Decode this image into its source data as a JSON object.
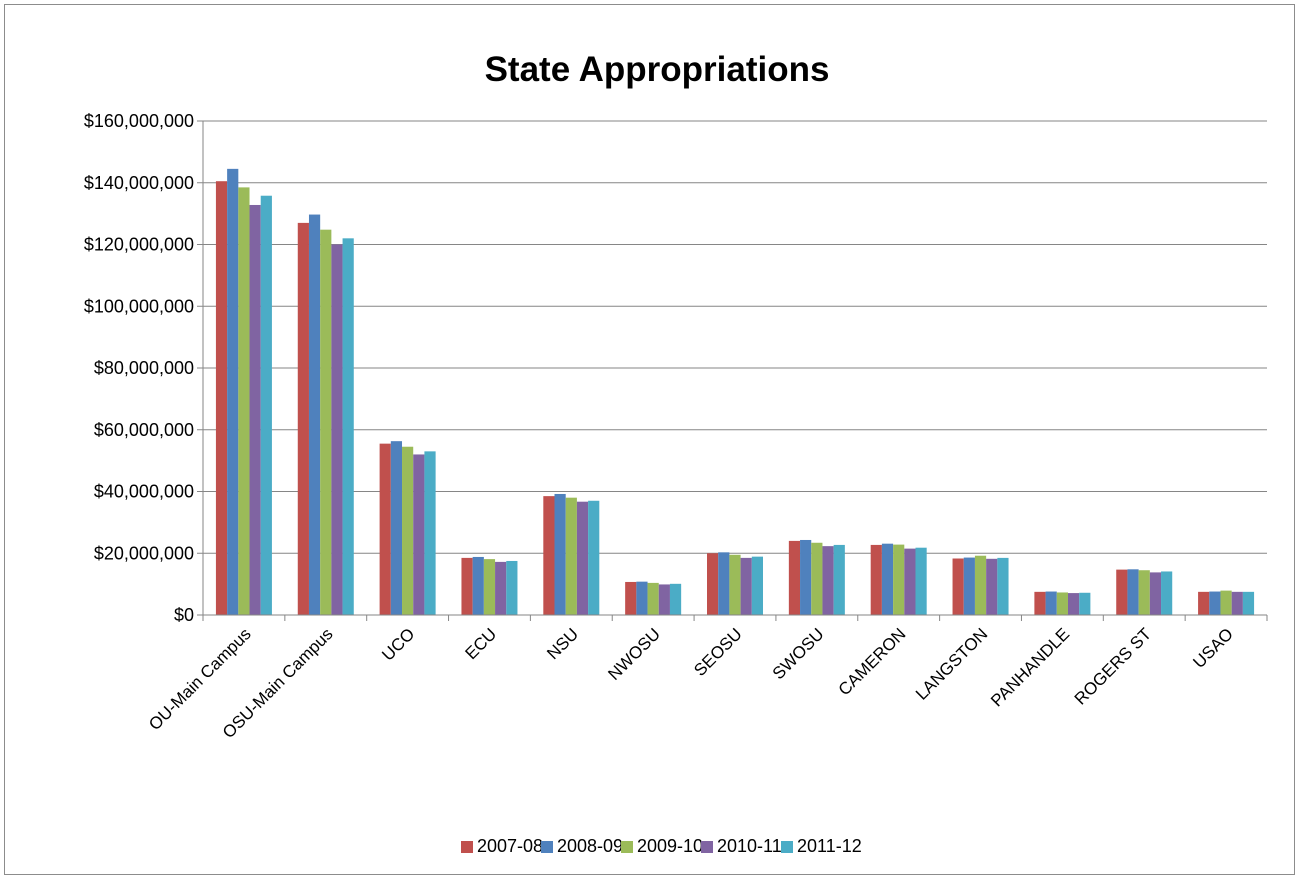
{
  "chart_data": {
    "type": "bar",
    "title": "State Appropriations",
    "xlabel": "",
    "ylabel": "",
    "ylim": [
      0,
      160000000
    ],
    "yticks": [
      0,
      20000000,
      40000000,
      60000000,
      80000000,
      100000000,
      120000000,
      140000000,
      160000000
    ],
    "ytick_labels": [
      "$0",
      "$20,000,000",
      "$40,000,000",
      "$60,000,000",
      "$80,000,000",
      "$100,000,000",
      "$120,000,000",
      "$140,000,000",
      "$160,000,000"
    ],
    "grid": true,
    "legend_position": "bottom",
    "categories": [
      "OU-Main Campus",
      "OSU-Main Campus",
      "UCO",
      "ECU",
      "NSU",
      "NWOSU",
      "SEOSU",
      "SWOSU",
      "CAMERON",
      "LANGSTON",
      "PANHANDLE",
      "ROGERS ST",
      "USAO"
    ],
    "series": [
      {
        "name": "2007-08",
        "color": "#C0504D",
        "values": [
          140500000,
          127000000,
          55500000,
          18500000,
          38500000,
          10700000,
          20000000,
          24000000,
          22700000,
          18300000,
          7500000,
          14700000,
          7500000
        ]
      },
      {
        "name": "2008-09",
        "color": "#4F81BD",
        "values": [
          144500000,
          129700000,
          56300000,
          18800000,
          39200000,
          10800000,
          20300000,
          24300000,
          23100000,
          18600000,
          7600000,
          14800000,
          7600000
        ]
      },
      {
        "name": "2009-10",
        "color": "#9BBB59",
        "values": [
          138500000,
          124800000,
          54500000,
          18100000,
          38000000,
          10400000,
          19500000,
          23400000,
          22800000,
          19200000,
          7300000,
          14500000,
          7900000
        ]
      },
      {
        "name": "2010-11",
        "color": "#8064A2",
        "values": [
          132800000,
          120000000,
          52000000,
          17200000,
          36700000,
          9900000,
          18500000,
          22300000,
          21500000,
          18200000,
          7100000,
          13800000,
          7500000
        ]
      },
      {
        "name": "2011-12",
        "color": "#4BACC6",
        "values": [
          135800000,
          122000000,
          53000000,
          17500000,
          37000000,
          10100000,
          18900000,
          22700000,
          21800000,
          18500000,
          7200000,
          14100000,
          7500000
        ]
      }
    ]
  }
}
